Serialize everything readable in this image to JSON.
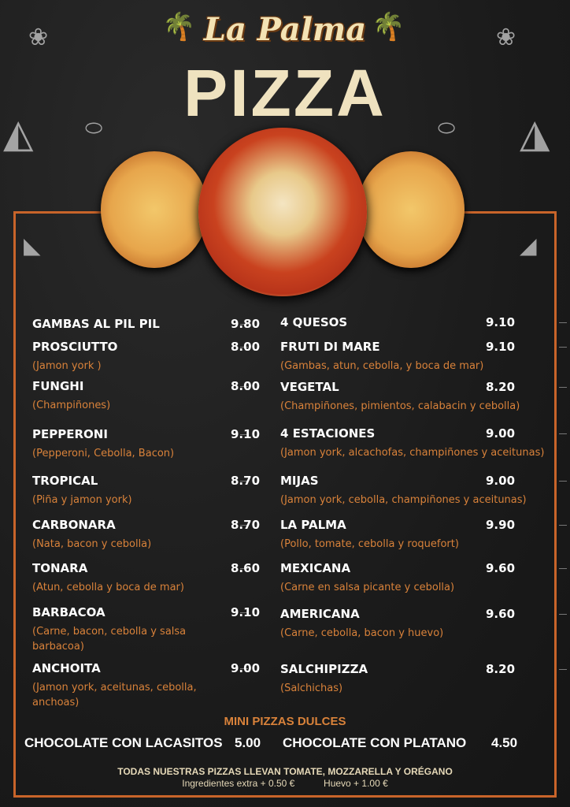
{
  "header": {
    "brand": "La Palma",
    "title": "PIZZA"
  },
  "menu": {
    "left": [
      {
        "name": "GAMBAS AL PIL PIL",
        "price": "9.80",
        "desc": ""
      },
      {
        "name": "PROSCIUTTO",
        "price": "8.00",
        "desc": "(Jamon york )"
      },
      {
        "name": "FUNGHI",
        "price": "8.00",
        "desc": "(Champiñones)"
      },
      {
        "name": "PEPPERONI",
        "price": "9.10",
        "desc": "(Pepperoni, Cebolla, Bacon)"
      },
      {
        "name": "TROPICAL",
        "price": "8.70",
        "desc": "(Piña y jamon york)"
      },
      {
        "name": "CARBONARA",
        "price": "8.70",
        "desc": "(Nata, bacon y cebolla)"
      },
      {
        "name": "TONARA",
        "price": "8.60",
        "desc": "(Atun, cebolla y boca de mar)"
      },
      {
        "name": "BARBACOA",
        "price": "9.10",
        "desc": "(Carne, bacon, cebolla y salsa barbacoa)"
      },
      {
        "name": "ANCHOITA",
        "price": "9.00",
        "desc": "(Jamon york, aceitunas, cebolla, anchoas)"
      }
    ],
    "right": [
      {
        "name": "4 QUESOS",
        "price": "9.10",
        "desc": ""
      },
      {
        "name": "FRUTI DI MARE",
        "price": "9.10",
        "desc": "(Gambas, atun, cebolla, y boca de mar)"
      },
      {
        "name": "VEGETAL",
        "price": "8.20",
        "desc": "(Champiñones, pimientos, calabacin y cebolla)"
      },
      {
        "name": "4 ESTACIONES",
        "price": "9.00",
        "desc": "(Jamon york, alcachofas, champiñones y aceitunas)"
      },
      {
        "name": "MIJAS",
        "price": "9.00",
        "desc": "(Jamon york, cebolla, champiñones y aceitunas)"
      },
      {
        "name": "LA PALMA",
        "price": "9.90",
        "desc": "(Pollo, tomate, cebolla y roquefort)"
      },
      {
        "name": "MEXICANA",
        "price": "9.60",
        "desc": "(Carne en salsa picante y cebolla)"
      },
      {
        "name": "AMERICANA",
        "price": "9.60",
        "desc": "(Carne, cebolla, bacon y huevo)"
      },
      {
        "name": "SALCHIPIZZA",
        "price": "8.20",
        "desc": "(Salchichas)"
      }
    ]
  },
  "dulces": {
    "title": "MINI PIZZAS DULCES",
    "items": [
      {
        "name": "CHOCOLATE CON LACASITOS",
        "price": "5.00"
      },
      {
        "name": "CHOCOLATE CON PLATANO",
        "price": "4.50"
      }
    ]
  },
  "footer": {
    "note": "TODAS NUESTRAS PIZZAS LLEVAN TOMATE, MOZZARELLA Y ORÉGANO",
    "extra": "Ingredientes extra + 0.50 €",
    "huevo": "Huevo + 1.00 €"
  },
  "colors": {
    "accent": "#c8642a",
    "desc": "#d9823a",
    "title": "#efe2bf"
  }
}
